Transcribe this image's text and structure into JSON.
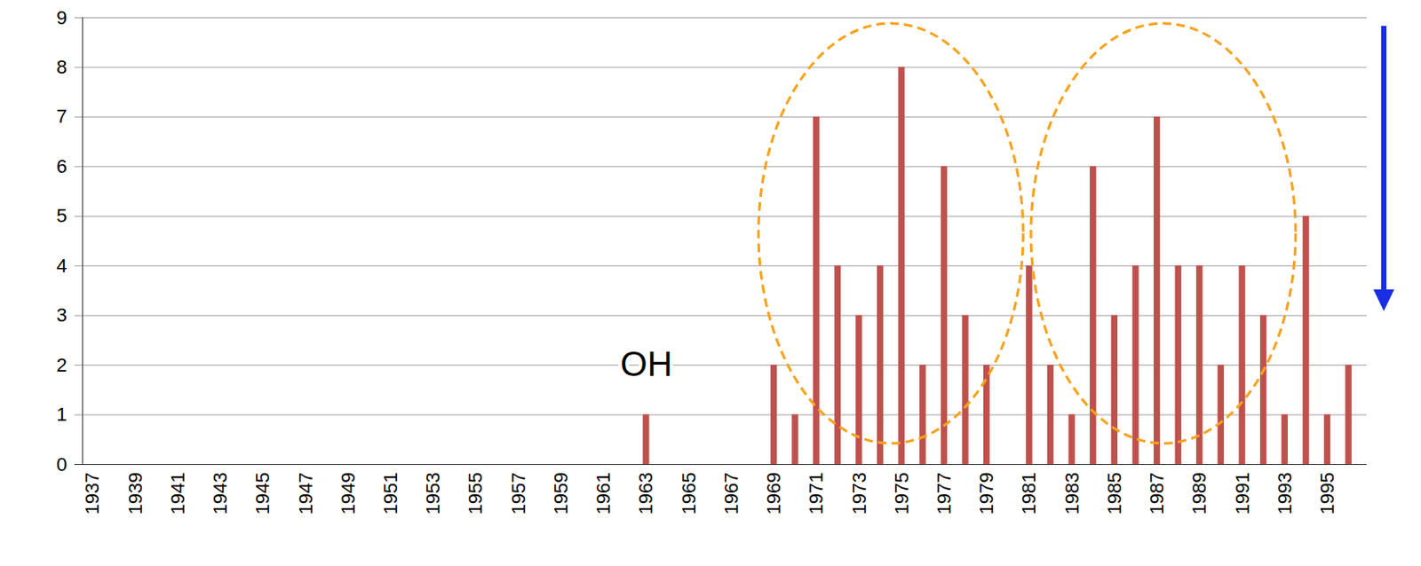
{
  "chart_data": {
    "type": "bar",
    "categories": [
      "1937",
      null,
      "1939",
      null,
      "1941",
      null,
      "1943",
      null,
      "1945",
      null,
      "1947",
      null,
      "1949",
      null,
      "1951",
      null,
      "1953",
      null,
      "1955",
      null,
      "1957",
      null,
      "1959",
      null,
      "1961",
      null,
      "1963",
      null,
      "1965",
      null,
      "1967",
      null,
      "1969",
      null,
      "1971",
      null,
      "1973",
      null,
      "1975",
      null,
      "1977",
      null,
      "1979",
      null,
      "1981",
      null,
      "1983",
      null,
      "1985",
      null,
      "1987",
      null,
      "1989",
      null,
      "1991",
      null,
      "1993",
      null,
      "1995",
      null
    ],
    "values": [
      0,
      0,
      0,
      0,
      0,
      0,
      0,
      0,
      0,
      0,
      0,
      0,
      0,
      0,
      0,
      0,
      0,
      0,
      0,
      0,
      0,
      0,
      0,
      0,
      0,
      0,
      1,
      0,
      0,
      0,
      0,
      0,
      2,
      1,
      7,
      4,
      3,
      4,
      8,
      2,
      6,
      3,
      2,
      0,
      4,
      2,
      1,
      6,
      3,
      4,
      7,
      4,
      4,
      2,
      4,
      3,
      1,
      5,
      1,
      2
    ],
    "color": "#c0504d",
    "ylim": [
      0,
      9
    ],
    "yticks": [
      0,
      1,
      2,
      3,
      4,
      5,
      6,
      7,
      8,
      9
    ],
    "grid": true,
    "annotations": [
      {
        "text": "OH",
        "x": "1963",
        "y": 2
      }
    ]
  }
}
